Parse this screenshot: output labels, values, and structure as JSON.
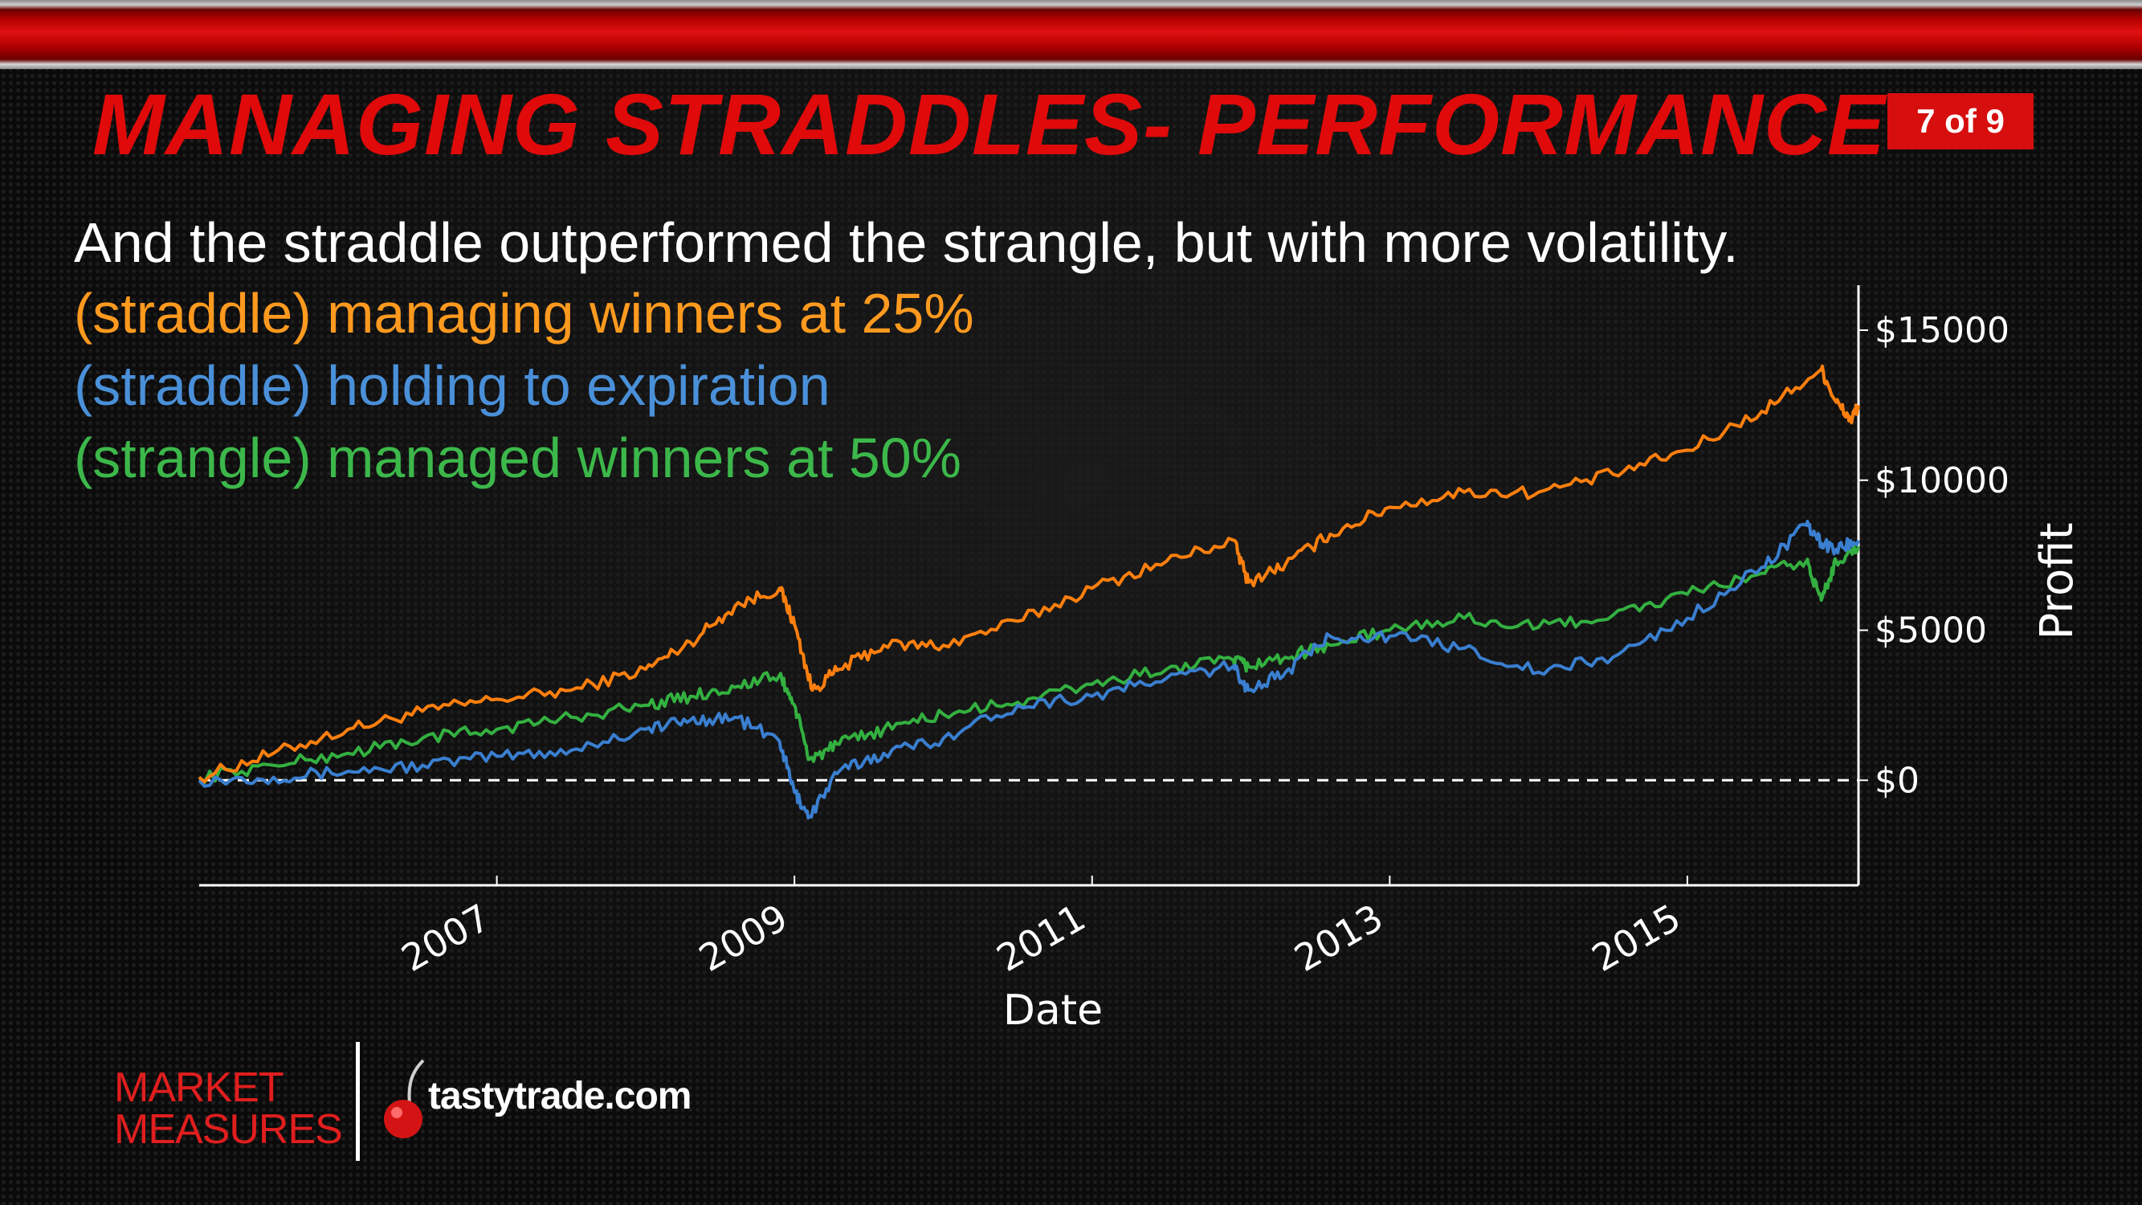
{
  "slide": {
    "title": "MANAGING STRADDLES- PERFORMANCE",
    "badge": "7 of 9",
    "subtitle": "And the straddle outperformed the strangle, but with more volatility."
  },
  "branding": {
    "market_measures_line1": "MARKET",
    "market_measures_line2": "MEASURES",
    "site": "tastytrade.com"
  },
  "colors": {
    "title": "#e00a0a",
    "straddle_managed": "#ff7f0e",
    "straddle_hold": "#3a7fd0",
    "strangle_managed": "#33b040"
  },
  "chart_data": {
    "type": "line",
    "xlabel": "Date",
    "ylabel": "Profit",
    "x_ticks": [
      "2007",
      "2009",
      "2011",
      "2013",
      "2015"
    ],
    "y_ticks": [
      "$0",
      "$5000",
      "$10000",
      "$15000"
    ],
    "xlim": [
      2005.0,
      2016.15
    ],
    "ylim": [
      -3500,
      16500
    ],
    "reference_line": {
      "y": 0,
      "style": "dashed"
    },
    "grid": false,
    "y_axis_side": "right",
    "legend": "top-left",
    "series": [
      {
        "name": "(straddle) managing winners at 25%",
        "color": "#ff7f0e",
        "points": [
          [
            2005.0,
            100
          ],
          [
            2005.5,
            900
          ],
          [
            2006.0,
            1700
          ],
          [
            2006.5,
            2300
          ],
          [
            2007.0,
            2700
          ],
          [
            2007.5,
            3000
          ],
          [
            2008.0,
            3700
          ],
          [
            2008.3,
            4600
          ],
          [
            2008.6,
            5800
          ],
          [
            2008.9,
            6400
          ],
          [
            2009.0,
            5200
          ],
          [
            2009.12,
            3000
          ],
          [
            2009.3,
            3700
          ],
          [
            2009.6,
            4500
          ],
          [
            2010.0,
            4500
          ],
          [
            2010.5,
            5300
          ],
          [
            2011.0,
            6400
          ],
          [
            2011.5,
            7300
          ],
          [
            2011.95,
            8000
          ],
          [
            2012.05,
            6600
          ],
          [
            2012.3,
            7200
          ],
          [
            2012.6,
            8200
          ],
          [
            2013.0,
            9100
          ],
          [
            2013.5,
            9600
          ],
          [
            2014.0,
            9600
          ],
          [
            2014.5,
            10200
          ],
          [
            2015.0,
            11000
          ],
          [
            2015.5,
            12300
          ],
          [
            2015.9,
            13700
          ],
          [
            2016.0,
            12600
          ],
          [
            2016.1,
            12000
          ],
          [
            2016.15,
            12500
          ]
        ]
      },
      {
        "name": "(straddle) holding to expiration",
        "color": "#3a7fd0",
        "points": [
          [
            2005.0,
            0
          ],
          [
            2005.5,
            100
          ],
          [
            2006.0,
            300
          ],
          [
            2006.5,
            500
          ],
          [
            2007.0,
            800
          ],
          [
            2007.5,
            1000
          ],
          [
            2008.0,
            1700
          ],
          [
            2008.3,
            2000
          ],
          [
            2008.6,
            2100
          ],
          [
            2008.9,
            1300
          ],
          [
            2009.0,
            -400
          ],
          [
            2009.1,
            -1200
          ],
          [
            2009.3,
            300
          ],
          [
            2009.6,
            900
          ],
          [
            2010.0,
            1400
          ],
          [
            2010.5,
            2500
          ],
          [
            2011.0,
            2800
          ],
          [
            2011.5,
            3400
          ],
          [
            2011.95,
            3800
          ],
          [
            2012.05,
            3000
          ],
          [
            2012.3,
            3600
          ],
          [
            2012.6,
            4800
          ],
          [
            2013.0,
            4800
          ],
          [
            2013.5,
            4400
          ],
          [
            2014.0,
            3600
          ],
          [
            2014.5,
            4100
          ],
          [
            2015.0,
            5400
          ],
          [
            2015.5,
            7100
          ],
          [
            2015.8,
            8500
          ],
          [
            2015.9,
            7900
          ],
          [
            2016.0,
            7700
          ],
          [
            2016.15,
            8000
          ]
        ]
      },
      {
        "name": "(strangle) managed winners at 50%",
        "color": "#33b040",
        "points": [
          [
            2005.0,
            100
          ],
          [
            2005.5,
            500
          ],
          [
            2006.0,
            900
          ],
          [
            2006.5,
            1400
          ],
          [
            2007.0,
            1700
          ],
          [
            2007.5,
            2100
          ],
          [
            2008.0,
            2500
          ],
          [
            2008.3,
            2800
          ],
          [
            2008.6,
            3100
          ],
          [
            2008.9,
            3500
          ],
          [
            2009.0,
            2500
          ],
          [
            2009.1,
            700
          ],
          [
            2009.3,
            1200
          ],
          [
            2009.6,
            1700
          ],
          [
            2010.0,
            2200
          ],
          [
            2010.5,
            2600
          ],
          [
            2011.0,
            3200
          ],
          [
            2011.5,
            3700
          ],
          [
            2011.95,
            4000
          ],
          [
            2012.05,
            3800
          ],
          [
            2012.3,
            4100
          ],
          [
            2012.6,
            4500
          ],
          [
            2013.0,
            5000
          ],
          [
            2013.5,
            5400
          ],
          [
            2014.0,
            5100
          ],
          [
            2014.5,
            5500
          ],
          [
            2015.0,
            6200
          ],
          [
            2015.5,
            6900
          ],
          [
            2015.8,
            7300
          ],
          [
            2015.9,
            6000
          ],
          [
            2016.0,
            7300
          ],
          [
            2016.15,
            7800
          ]
        ]
      }
    ]
  }
}
